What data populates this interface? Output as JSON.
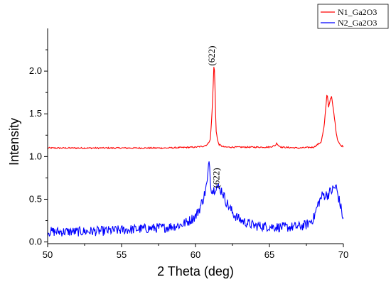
{
  "chart_data": {
    "type": "line",
    "title": "",
    "xlabel": "2 Theta (deg)",
    "ylabel": "Intensity",
    "xlim": [
      50,
      70
    ],
    "ylim": [
      -0.02,
      2.5
    ],
    "x_ticks": [
      50,
      55,
      60,
      65,
      70
    ],
    "y_ticks": [
      0.0,
      0.5,
      1.0,
      1.5,
      2.0
    ],
    "x_tick_labels": [
      "50",
      "55",
      "60",
      "65",
      "70"
    ],
    "y_tick_labels": [
      "0.0",
      "0.5",
      "1.0",
      "1.5",
      "2.0"
    ],
    "grid": false,
    "legend_position": "top-right",
    "annotations": [
      {
        "text": "(622)",
        "x": 61.3,
        "y": 2.18,
        "rotation": -90
      },
      {
        "text": "(622)",
        "x": 61.6,
        "y": 0.75,
        "rotation": -90
      }
    ],
    "series": [
      {
        "name": "N1_Ga2O3",
        "color": "#ff0000",
        "baseline": 1.1,
        "noise": 0.006,
        "x": [
          50.0,
          52.0,
          55.0,
          58.0,
          60.0,
          60.5,
          60.8,
          61.0,
          61.1,
          61.2,
          61.25,
          61.3,
          61.35,
          61.4,
          61.5,
          61.6,
          61.8,
          62.0,
          63.0,
          65.0,
          65.4,
          65.5,
          65.6,
          65.8,
          67.0,
          68.0,
          68.5,
          68.7,
          68.8,
          68.9,
          69.0,
          69.1,
          69.2,
          69.3,
          69.4,
          69.5,
          69.6,
          69.8,
          70.0
        ],
        "y": [
          1.1,
          1.1,
          1.1,
          1.1,
          1.11,
          1.12,
          1.14,
          1.2,
          1.45,
          1.85,
          2.1,
          1.95,
          1.55,
          1.3,
          1.18,
          1.14,
          1.12,
          1.11,
          1.11,
          1.11,
          1.13,
          1.16,
          1.13,
          1.11,
          1.1,
          1.11,
          1.17,
          1.35,
          1.55,
          1.75,
          1.58,
          1.66,
          1.7,
          1.58,
          1.45,
          1.3,
          1.2,
          1.13,
          1.12
        ]
      },
      {
        "name": "N2_Ga2O3",
        "color": "#0000ff",
        "baseline": 0.12,
        "noise": 0.055,
        "x": [
          50.0,
          52.0,
          54.0,
          56.0,
          58.0,
          59.0,
          59.5,
          60.0,
          60.3,
          60.6,
          60.8,
          60.9,
          60.95,
          61.0,
          61.1,
          61.2,
          61.4,
          61.6,
          61.8,
          62.0,
          62.3,
          62.6,
          63.0,
          63.5,
          64.0,
          65.0,
          66.0,
          67.0,
          67.5,
          68.0,
          68.3,
          68.6,
          68.9,
          69.2,
          69.5,
          69.7,
          69.9,
          70.0
        ],
        "y": [
          0.12,
          0.12,
          0.13,
          0.15,
          0.17,
          0.2,
          0.24,
          0.3,
          0.4,
          0.55,
          0.7,
          0.9,
          1.0,
          0.7,
          0.62,
          0.6,
          0.66,
          0.62,
          0.6,
          0.5,
          0.4,
          0.32,
          0.26,
          0.22,
          0.19,
          0.18,
          0.17,
          0.18,
          0.2,
          0.28,
          0.45,
          0.55,
          0.55,
          0.6,
          0.65,
          0.5,
          0.35,
          0.25
        ]
      }
    ]
  }
}
